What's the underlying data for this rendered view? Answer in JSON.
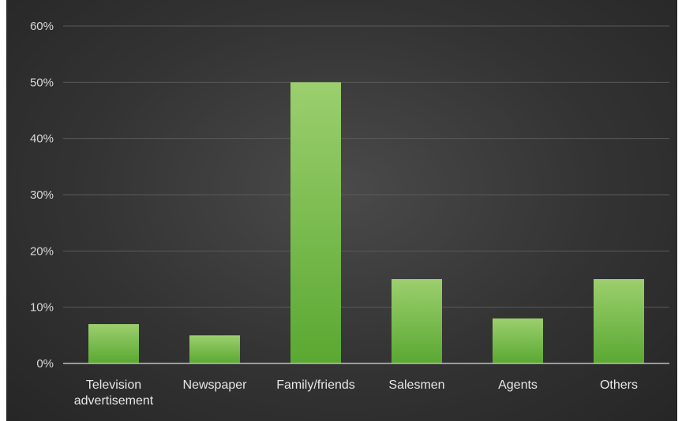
{
  "chart_data": {
    "type": "bar",
    "title": "",
    "xlabel": "",
    "ylabel": "",
    "categories": [
      [
        "Television",
        "advertisement"
      ],
      [
        "Newspaper"
      ],
      [
        "Family/friends"
      ],
      [
        "Salesmen"
      ],
      [
        "Agents"
      ],
      [
        "Others"
      ]
    ],
    "values": [
      7,
      5,
      50,
      15,
      8,
      15
    ],
    "ylim": [
      0,
      60
    ],
    "yticks": [
      0,
      10,
      20,
      30,
      40,
      50,
      60
    ],
    "ytick_labels": [
      "0%",
      "10%",
      "20%",
      "30%",
      "40%",
      "50%",
      "60%"
    ],
    "grid": true,
    "legend": "none",
    "colors": {
      "bar_top": "#9ccf6e",
      "bar_bottom": "#5aa832",
      "background": "#333333"
    }
  }
}
